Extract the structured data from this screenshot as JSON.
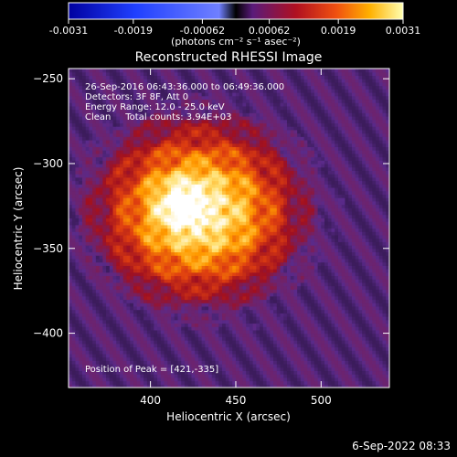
{
  "colorbar": {
    "ticks": [
      "-0.0031",
      "-0.0019",
      "-0.00062",
      "0.00062",
      "0.0019",
      "0.0031"
    ],
    "tick_values": [
      -0.0031,
      -0.0019,
      -0.00062,
      0.00062,
      0.0019,
      0.0031
    ],
    "unit_label": "(photons cm⁻² s⁻¹ asec⁻²)",
    "range": [
      -0.0031,
      0.0031
    ]
  },
  "chart_data": {
    "type": "heatmap",
    "title": "Reconstructed RHESSI Image",
    "xlabel": "Heliocentric X (arcsec)",
    "ylabel": "Heliocentric Y (arcsec)",
    "xlim": [
      352,
      540
    ],
    "ylim": [
      -432,
      -244
    ],
    "xticks": [
      400,
      450,
      500
    ],
    "yticks": [
      -250,
      -300,
      -350,
      -400
    ],
    "peak": {
      "x": 421,
      "y": -335
    },
    "colormap": [
      "#000000",
      "#5a2a8a",
      "#a01020",
      "#e04010",
      "#ff9a00",
      "#ffe070",
      "#ffffff"
    ],
    "annotations": [
      "26-Sep-2016 06:43:36.000 to 06:49:36.000",
      "Detectors: 3F 8F, Att 0",
      "Energy Range: 12.0 - 25.0 keV",
      "Clean     Total counts: 3.94E+03"
    ],
    "peak_label": "Position of Peak = [421,-335]"
  },
  "footer": {
    "timestamp": "6-Sep-2022 08:33"
  }
}
